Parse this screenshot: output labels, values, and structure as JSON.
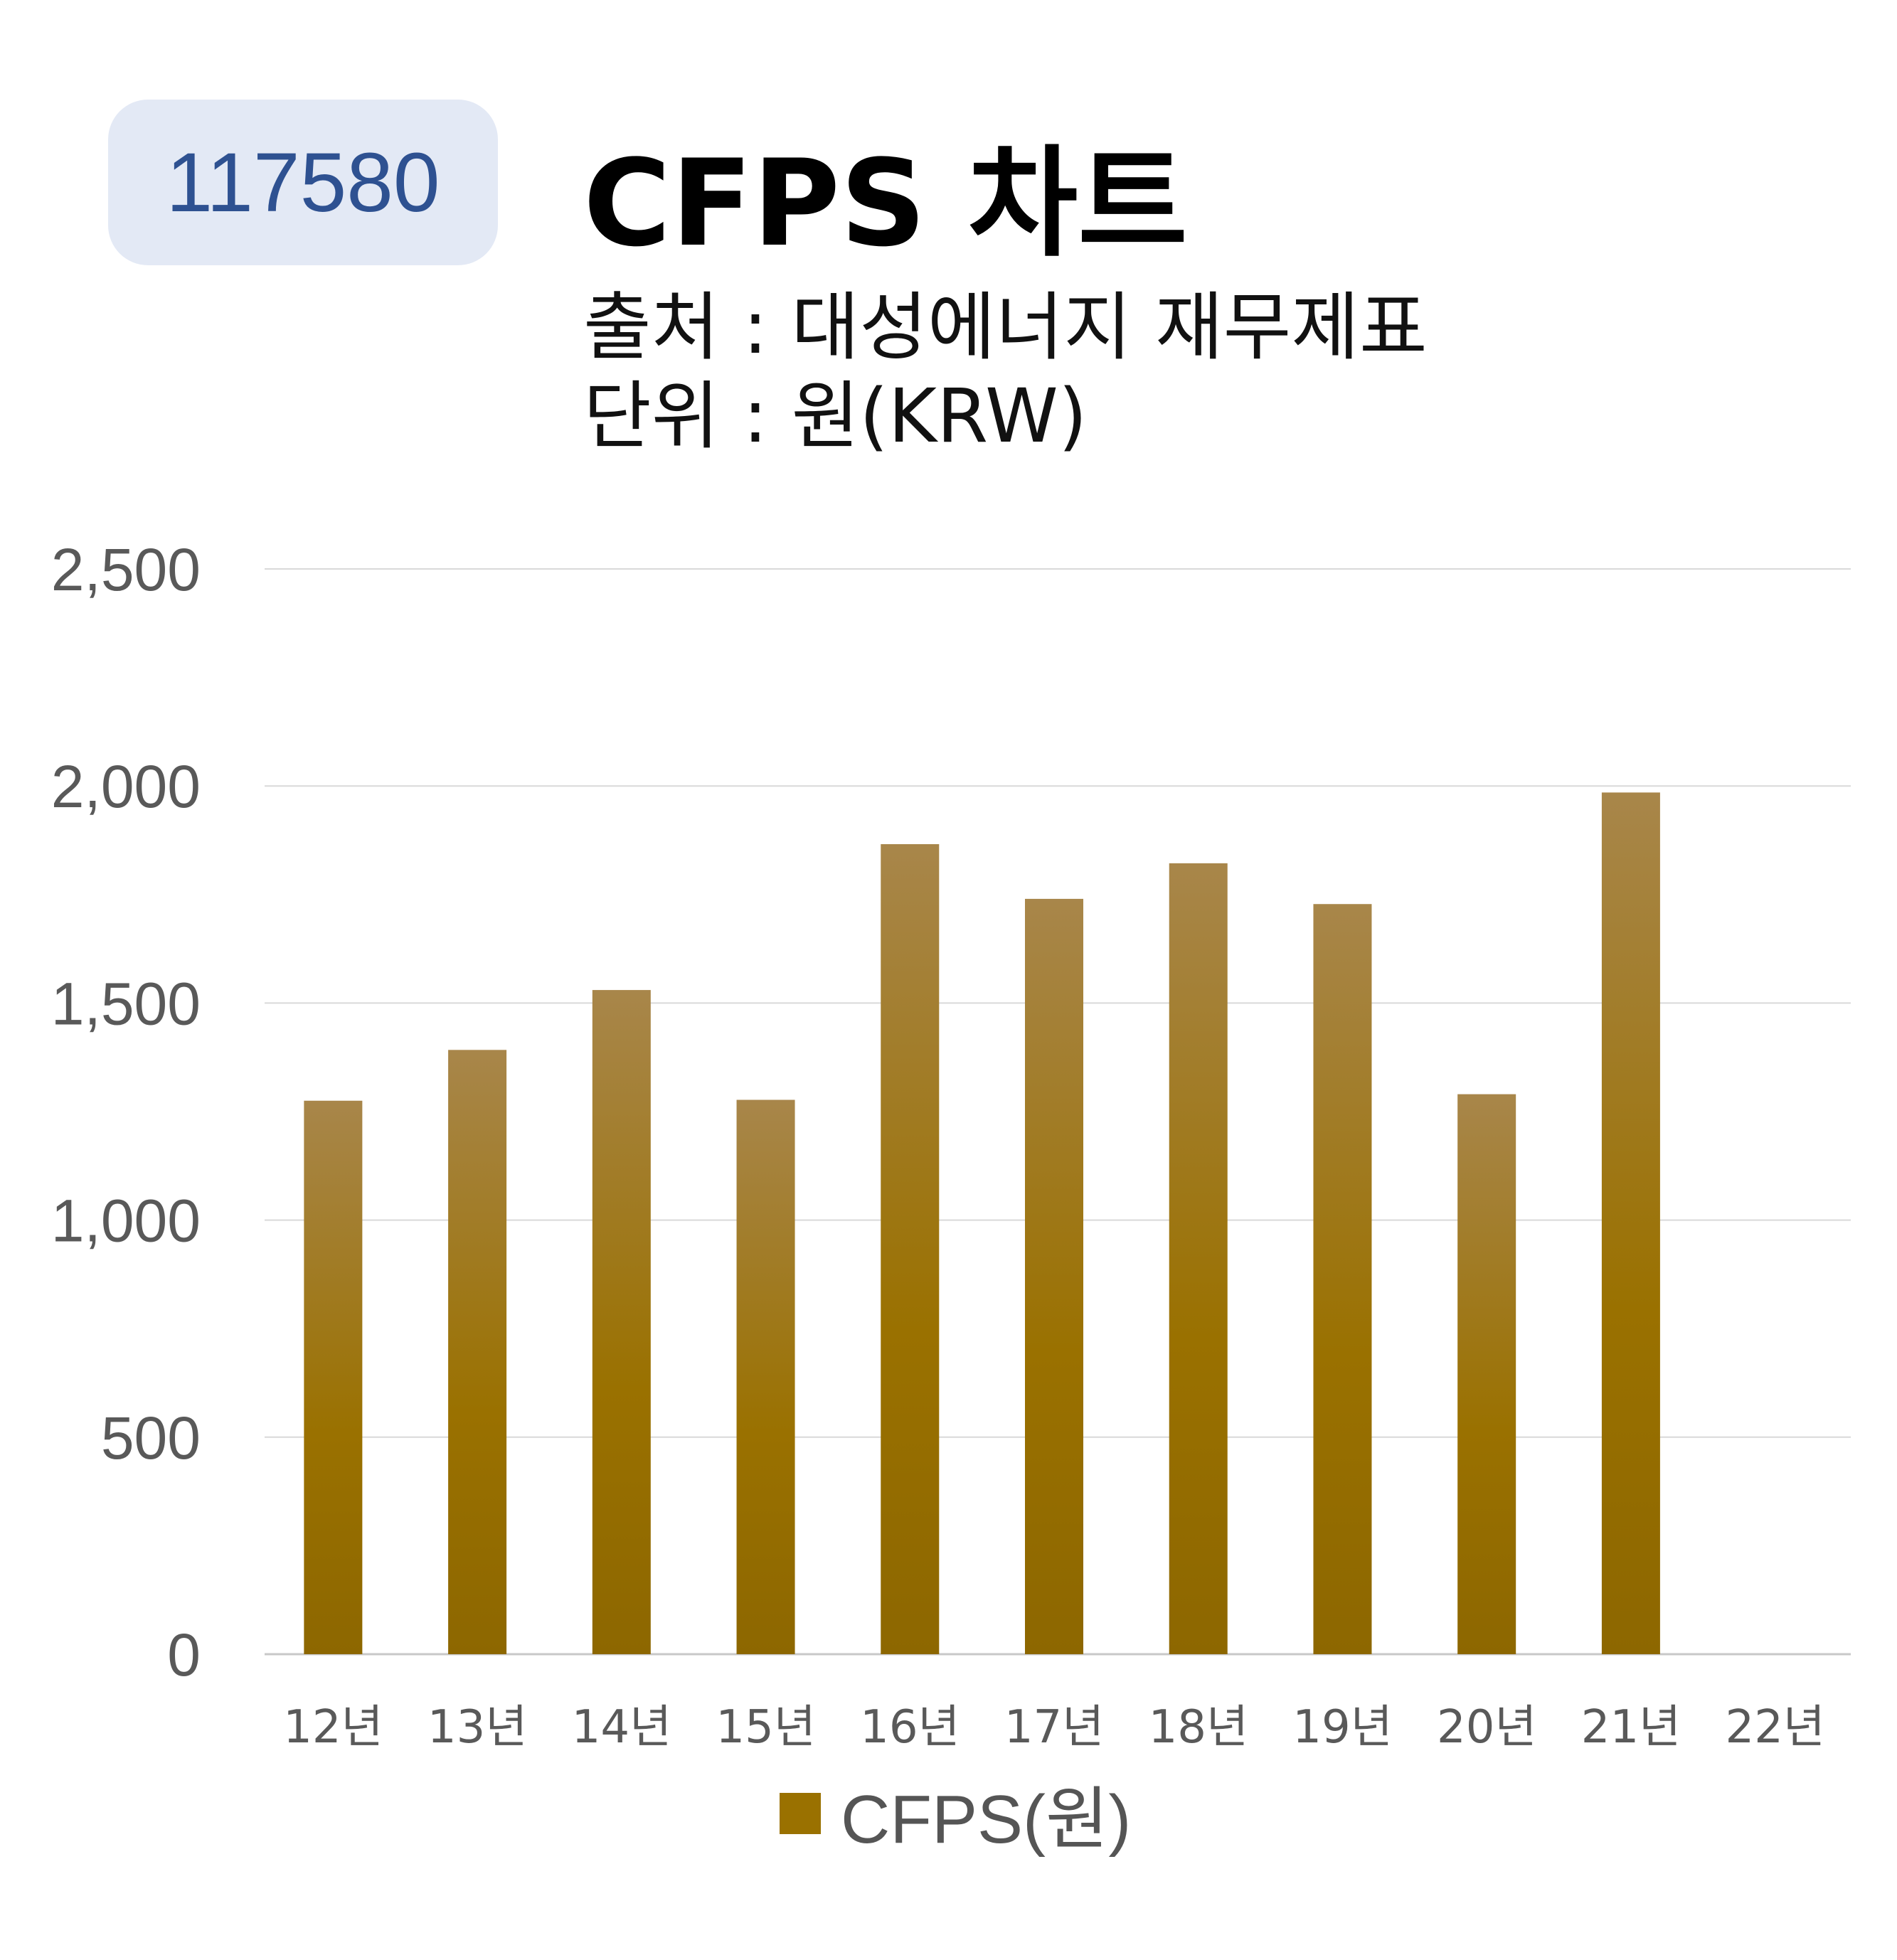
{
  "header": {
    "code": "117580",
    "title": "CFPS 차트",
    "source": "출처 : 대성에너지 재무제표",
    "unit": "단위 : 원(KRW)"
  },
  "colors": {
    "bar": "#9a7100",
    "bar_light": "#a8864a",
    "grid": "#d9d9d9",
    "badge_bg": "#e3e9f5",
    "badge_text": "#2e5191"
  },
  "chart_data": {
    "type": "bar",
    "categories": [
      "12년",
      "13년",
      "14년",
      "15년",
      "16년",
      "17년",
      "18년",
      "19년",
      "20년",
      "21년",
      "22년"
    ],
    "series": [
      {
        "name": "CFPS(원)",
        "values": [
          1275,
          1392,
          1530,
          1277,
          1866,
          1740,
          1822,
          1728,
          1290,
          1985,
          null
        ]
      }
    ],
    "ylim": [
      0,
      2500
    ],
    "yticks": [
      0,
      500,
      1000,
      1500,
      2000,
      2500
    ],
    "ytick_labels": [
      "0",
      "500",
      "1,000",
      "1,500",
      "2,000",
      "2,500"
    ],
    "grid": true,
    "legend": "bottom"
  }
}
